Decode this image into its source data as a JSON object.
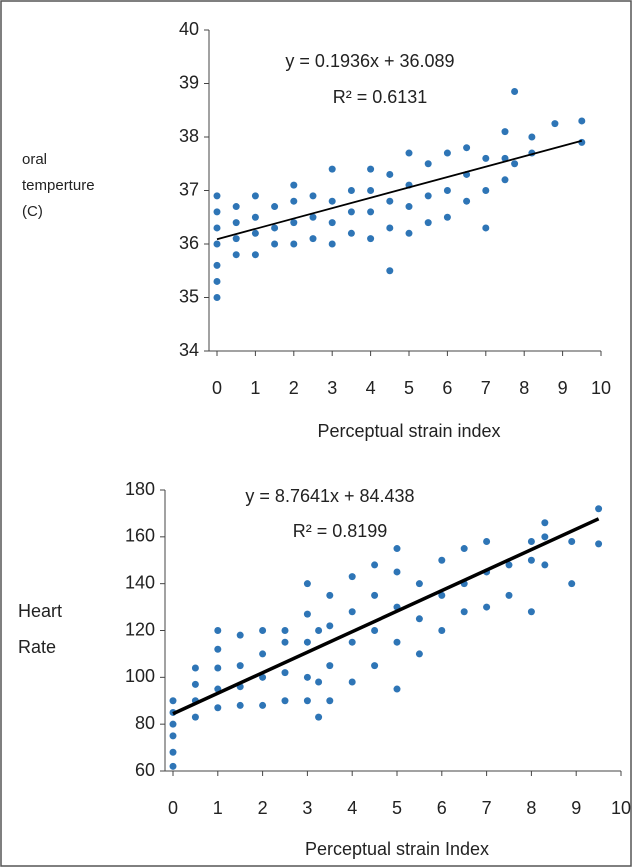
{
  "chart_data": [
    {
      "type": "scatter",
      "color": "#2e75b6",
      "y_label_lines": [
        "oral",
        "temperture",
        "(C)"
      ],
      "x_label": "Perceptual strain index",
      "annotations": [
        "y = 0.1936x + 36.089",
        "R² = 0.6131"
      ],
      "xlim": [
        0,
        10
      ],
      "xticks": [
        0,
        1,
        2,
        3,
        4,
        5,
        6,
        7,
        8,
        9,
        10
      ],
      "ylim": [
        34,
        40
      ],
      "yticks": [
        34,
        35,
        36,
        37,
        38,
        39,
        40
      ],
      "x": [
        0,
        0,
        0,
        0,
        0,
        0,
        0,
        0.5,
        0.5,
        0.5,
        0.5,
        1,
        1,
        1,
        1,
        1.5,
        1.5,
        1.5,
        2,
        2,
        2,
        2,
        2.5,
        2.5,
        2.5,
        3,
        3,
        3,
        3,
        3.5,
        3.5,
        3.5,
        4,
        4,
        4,
        4,
        4.5,
        4.5,
        4.5,
        4.5,
        5,
        5,
        5,
        5,
        5.5,
        5.5,
        5.5,
        6,
        6,
        6,
        6.5,
        6.5,
        6.5,
        7,
        7,
        7,
        7.5,
        7.5,
        7.5,
        7.75,
        7.75,
        8.2,
        8.2,
        8.8,
        9.5,
        9.5
      ],
      "values": [
        35.0,
        35.3,
        35.6,
        36.0,
        36.3,
        36.6,
        36.9,
        35.8,
        36.1,
        36.4,
        36.7,
        35.8,
        36.2,
        36.5,
        36.9,
        36.0,
        36.3,
        36.7,
        36.0,
        36.4,
        36.8,
        37.1,
        36.1,
        36.5,
        36.9,
        36.0,
        36.4,
        36.8,
        37.4,
        36.2,
        36.6,
        37.0,
        36.1,
        36.6,
        37.0,
        37.4,
        35.5,
        36.3,
        36.8,
        37.3,
        36.2,
        36.7,
        37.1,
        37.7,
        36.4,
        36.9,
        37.5,
        36.5,
        37.0,
        37.7,
        36.8,
        37.3,
        37.8,
        36.3,
        37.0,
        37.6,
        37.2,
        37.6,
        38.1,
        38.85,
        37.5,
        37.7,
        38.0,
        38.25,
        37.9,
        38.3
      ],
      "trendline": {
        "color": "#000000",
        "x": [
          0,
          9.5
        ],
        "values": [
          36.089,
          37.93
        ]
      }
    },
    {
      "type": "scatter",
      "color": "#2e75b6",
      "y_label_lines": [
        "Heart",
        "Rate"
      ],
      "x_label": "Perceptual strain Index",
      "annotations": [
        "y = 8.7641x + 84.438",
        "R² = 0.8199"
      ],
      "xlim": [
        0,
        10
      ],
      "xticks": [
        0,
        1,
        2,
        3,
        4,
        5,
        6,
        7,
        8,
        9,
        10
      ],
      "ylim": [
        60,
        180
      ],
      "yticks": [
        60,
        80,
        100,
        120,
        140,
        160,
        180
      ],
      "x": [
        0,
        0,
        0,
        0,
        0,
        0,
        0.5,
        0.5,
        0.5,
        0.5,
        1,
        1,
        1,
        1,
        1,
        1.5,
        1.5,
        1.5,
        1.5,
        2,
        2,
        2,
        2,
        2.5,
        2.5,
        2.5,
        2.5,
        3,
        3,
        3,
        3,
        3,
        3.25,
        3.25,
        3.25,
        3.5,
        3.5,
        3.5,
        3.5,
        4,
        4,
        4,
        4,
        4.5,
        4.5,
        4.5,
        4.5,
        5,
        5,
        5,
        5,
        5,
        5.5,
        5.5,
        5.5,
        6,
        6,
        6,
        6.5,
        6.5,
        6.5,
        7,
        7,
        7,
        7.5,
        7.5,
        8,
        8,
        8,
        8.3,
        8.3,
        8.3,
        8.9,
        8.9,
        9.5,
        9.5
      ],
      "values": [
        62,
        68,
        75,
        80,
        85,
        90,
        83,
        90,
        97,
        104,
        87,
        95,
        104,
        112,
        120,
        88,
        96,
        105,
        118,
        88,
        100,
        110,
        120,
        90,
        102,
        115,
        120,
        90,
        100,
        115,
        127,
        140,
        83,
        98,
        120,
        90,
        105,
        122,
        135,
        98,
        115,
        128,
        143,
        105,
        120,
        135,
        148,
        95,
        115,
        130,
        145,
        155,
        110,
        125,
        140,
        120,
        135,
        150,
        128,
        140,
        155,
        130,
        145,
        158,
        135,
        148,
        128,
        150,
        158,
        148,
        160,
        166,
        140,
        158,
        157,
        172
      ],
      "trendline": {
        "color": "#000000",
        "x": [
          0,
          9.5
        ],
        "values": [
          84.438,
          167.7
        ]
      }
    }
  ]
}
